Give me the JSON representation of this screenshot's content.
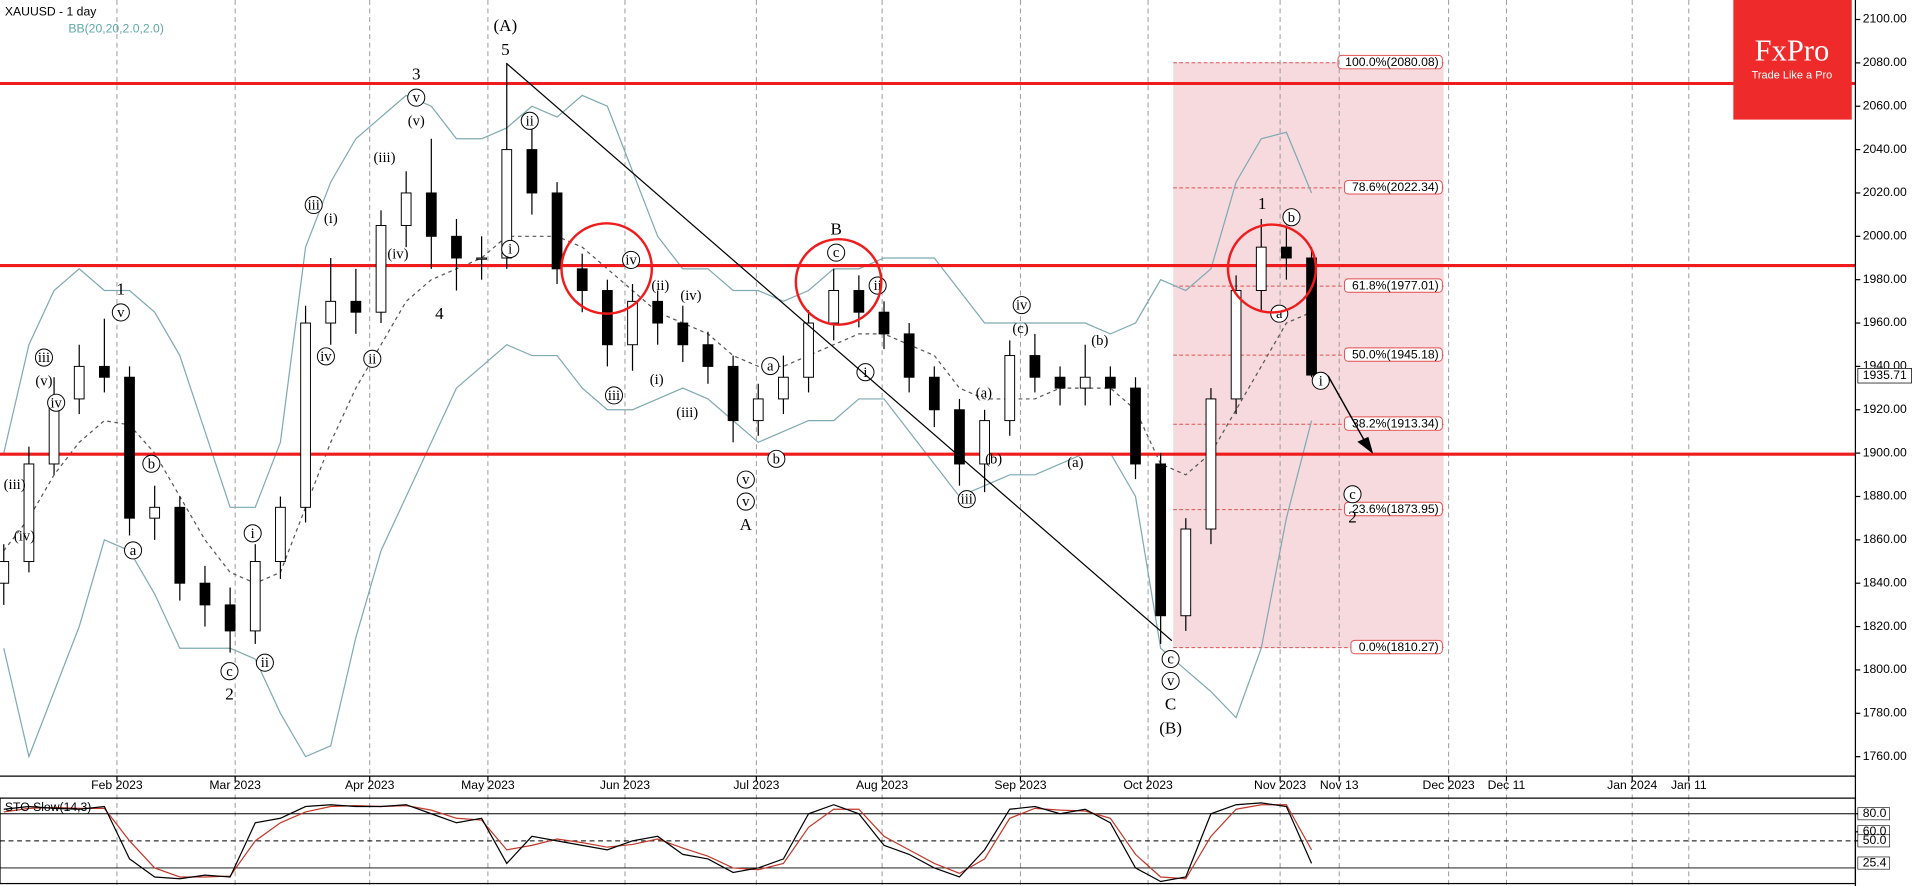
{
  "chart_data": {
    "type": "candlestick",
    "title": "XAUUSD - 1 day",
    "indicator": "BB(20,20,2.0,2.0)",
    "x": [
      -18,
      -14,
      -10,
      -6,
      -2,
      2,
      6,
      10,
      14,
      18,
      22,
      26,
      30,
      34,
      38,
      42,
      46,
      50,
      54,
      58,
      62,
      66,
      70,
      74,
      78,
      82,
      86,
      90,
      94,
      98,
      102,
      106,
      110,
      114,
      118,
      122,
      126,
      130,
      134,
      138,
      142,
      146,
      150,
      154,
      158,
      162,
      166,
      170,
      174,
      178,
      182,
      186,
      190
    ],
    "open": [
      1840,
      1850,
      1895,
      1925,
      1940,
      1935,
      1870,
      1875,
      1840,
      1830,
      1818,
      1850,
      1875,
      1960,
      1970,
      1965,
      2005,
      2020,
      2000,
      1990,
      1990,
      2040,
      2020,
      1985,
      1975,
      1950,
      1970,
      1960,
      1950,
      1940,
      1915,
      1925,
      1935,
      1960,
      1975,
      1965,
      1955,
      1935,
      1920,
      1895,
      1915,
      1945,
      1935,
      1930,
      1935,
      1930,
      1895,
      1825,
      1865,
      1925,
      1975,
      1995,
      1990
    ],
    "high": [
      1858,
      1903,
      1935,
      1950,
      1962,
      1940,
      1885,
      1880,
      1848,
      1838,
      1858,
      1880,
      1968,
      1990,
      1985,
      2012,
      2030,
      2045,
      2008,
      2000,
      2080,
      2055,
      2025,
      1992,
      1980,
      1978,
      1975,
      1968,
      1956,
      1945,
      1932,
      1945,
      1966,
      1985,
      1982,
      1970,
      1960,
      1940,
      1925,
      1920,
      1952,
      1955,
      1940,
      1950,
      1940,
      1935,
      1900,
      1870,
      1930,
      1982,
      2008,
      2005,
      1995
    ],
    "low": [
      1830,
      1845,
      1890,
      1918,
      1928,
      1862,
      1860,
      1832,
      1820,
      1808,
      1812,
      1842,
      1868,
      1950,
      1955,
      1960,
      1995,
      1985,
      1975,
      1980,
      1985,
      2010,
      1978,
      1965,
      1940,
      1938,
      1950,
      1942,
      1932,
      1905,
      1908,
      1918,
      1928,
      1952,
      1958,
      1948,
      1928,
      1912,
      1885,
      1882,
      1908,
      1928,
      1922,
      1922,
      1922,
      1888,
      1812,
      1818,
      1858,
      1918,
      1965,
      1980,
      1935
    ],
    "close": [
      1850,
      1895,
      1925,
      1940,
      1935,
      1870,
      1875,
      1840,
      1830,
      1818,
      1850,
      1875,
      1960,
      1970,
      1965,
      2005,
      2020,
      2000,
      1990,
      1990,
      2040,
      2020,
      1985,
      1975,
      1950,
      1970,
      1960,
      1950,
      1940,
      1915,
      1925,
      1935,
      1960,
      1975,
      1965,
      1955,
      1935,
      1920,
      1895,
      1915,
      1945,
      1935,
      1930,
      1935,
      1930,
      1895,
      1825,
      1865,
      1925,
      1975,
      1995,
      1990,
      1936
    ],
    "up_color": "#ffffff",
    "down_color": "#000000",
    "bands": {
      "color": "#7fa9b3",
      "upper": [
        1900,
        1950,
        1975,
        1985,
        1975,
        1975,
        1965,
        1945,
        1910,
        1875,
        1875,
        1905,
        1995,
        2025,
        2045,
        2055,
        2065,
        2060,
        2045,
        2045,
        2050,
        2060,
        2055,
        2065,
        2060,
        2030,
        2000,
        1985,
        1985,
        1975,
        1975,
        1970,
        1975,
        1985,
        1985,
        1990,
        1990,
        1990,
        1975,
        1960,
        1960,
        1960,
        1960,
        1960,
        1955,
        1960,
        1980,
        1975,
        1985,
        2025,
        2045,
        2048,
        2020
      ],
      "middle": [
        1855,
        1870,
        1890,
        1905,
        1915,
        1913,
        1900,
        1880,
        1860,
        1845,
        1840,
        1845,
        1875,
        1905,
        1930,
        1950,
        1970,
        1980,
        1985,
        1990,
        2000,
        2000,
        2000,
        1995,
        1985,
        1975,
        1965,
        1960,
        1955,
        1945,
        1940,
        1940,
        1945,
        1950,
        1955,
        1955,
        1950,
        1945,
        1930,
        1925,
        1925,
        1925,
        1930,
        1930,
        1930,
        1920,
        1895,
        1890,
        1900,
        1920,
        1940,
        1960,
        1965
      ],
      "lower": [
        1810,
        1760,
        1790,
        1820,
        1860,
        1855,
        1835,
        1810,
        1810,
        1810,
        1805,
        1780,
        1760,
        1765,
        1815,
        1855,
        1880,
        1905,
        1930,
        1940,
        1950,
        1945,
        1945,
        1930,
        1920,
        1920,
        1925,
        1930,
        1925,
        1915,
        1905,
        1910,
        1915,
        1915,
        1925,
        1925,
        1910,
        1895,
        1880,
        1885,
        1890,
        1890,
        1895,
        1900,
        1900,
        1880,
        1810,
        1800,
        1790,
        1778,
        1810,
        1870,
        1915
      ]
    },
    "xlim": [
      -18.6,
      276.5
    ],
    "xticks": [
      {
        "value": 0,
        "label": "Feb 2023"
      },
      {
        "value": 18.8,
        "label": "Mar 2023"
      },
      {
        "value": 40.2,
        "label": "Apr 2023"
      },
      {
        "value": 59,
        "label": "May 2023"
      },
      {
        "value": 80.8,
        "label": "Jun 2023"
      },
      {
        "value": 101.7,
        "label": "Jul 2023"
      },
      {
        "value": 121.7,
        "label": "Aug 2023"
      },
      {
        "value": 143.7,
        "label": "Sep 2023"
      },
      {
        "value": 164,
        "label": "Oct 2023"
      },
      {
        "value": 185,
        "label": "Nov 2023"
      },
      {
        "value": 194.4,
        "label": "Nov 13"
      },
      {
        "value": 211.8,
        "label": "Dec 2023"
      },
      {
        "value": 221,
        "label": "Dec 11"
      },
      {
        "value": 241,
        "label": "Jan 2024"
      },
      {
        "value": 250,
        "label": "Jan 11"
      }
    ],
    "ylim": [
      1751,
      2109
    ],
    "yticks": [
      {
        "value": 1760,
        "label": "1760.00"
      },
      {
        "value": 1780,
        "label": "1780.00"
      },
      {
        "value": 1800,
        "label": "1800.00"
      },
      {
        "value": 1820,
        "label": "1820.00"
      },
      {
        "value": 1840,
        "label": "1840.00"
      },
      {
        "value": 1860,
        "label": "1860.00"
      },
      {
        "value": 1880,
        "label": "1880.00"
      },
      {
        "value": 1900,
        "label": "1900.00"
      },
      {
        "value": 1920,
        "label": "1920.00"
      },
      {
        "value": 1940,
        "label": "1940.00"
      },
      {
        "value": 1960,
        "label": "1960.00"
      },
      {
        "value": 1980,
        "label": "1980.00"
      },
      {
        "value": 2000,
        "label": "2000.00"
      },
      {
        "value": 2020,
        "label": "2020.00"
      },
      {
        "value": 2040,
        "label": "2040.00"
      },
      {
        "value": 2060,
        "label": "2060.00"
      },
      {
        "value": 2080,
        "label": "2080.00"
      },
      {
        "value": 2100,
        "label": "2100.00"
      }
    ],
    "last_price": 1935.71,
    "levels": [
      2070.5,
      1986.5,
      1899.5
    ],
    "level_color": "#ee1c1c",
    "fib_x": [
      168,
      211
    ],
    "fib": [
      {
        "value": 2080.08,
        "label": "100.0%(2080.08)"
      },
      {
        "value": 2022.34,
        "label": "78.6%(2022.34)"
      },
      {
        "value": 1977.01,
        "label": "61.8%(1977.01)"
      },
      {
        "value": 1945.18,
        "label": "50.0%(1945.18)"
      },
      {
        "value": 1913.34,
        "label": "38.2%(1913.34)"
      },
      {
        "value": 1873.95,
        "label": "23.6%(1873.95)"
      },
      {
        "value": 1810.27,
        "label": "0.0%(1810.27)"
      }
    ],
    "annotations": [
      "(A)",
      "5",
      "3",
      "4",
      "1",
      "2",
      "A",
      "B",
      "C",
      "(B)",
      "1",
      "2",
      "(iii)",
      "(v)",
      "(i)",
      "(iv)",
      "(v)",
      "(iii)",
      "(iv)",
      "(ii)",
      "(iv)",
      "(i)",
      "(iii)",
      "(c)",
      "(a)",
      "(b)",
      "(b)",
      "(a)",
      "v",
      "iii",
      "iv",
      "b",
      "a",
      "c",
      "ii",
      "i",
      "iii",
      "iv",
      "ii",
      "v",
      "i",
      "ii",
      "iv",
      "iii",
      "a",
      "b",
      "v",
      "v",
      "c",
      "ii",
      "i",
      "iii",
      "iv",
      "c",
      "v",
      "b",
      "a",
      "i",
      "c"
    ],
    "stoch": {
      "title": "STO Slow(14,3)",
      "ylim": [
        0,
        100
      ],
      "yticks": [
        {
          "value": 80,
          "label": "80.0"
        },
        {
          "value": 60,
          "label": "60.0"
        },
        {
          "value": 50,
          "label": "50.0"
        }
      ],
      "levels": [
        80,
        50,
        20
      ],
      "last": 25.4,
      "k_color": "#000000",
      "d_color": "#c0392b",
      "k": [
        85,
        88,
        86,
        85,
        88,
        30,
        10,
        8,
        12,
        10,
        70,
        75,
        88,
        90,
        88,
        88,
        90,
        80,
        70,
        75,
        25,
        55,
        50,
        45,
        40,
        50,
        55,
        35,
        30,
        15,
        20,
        30,
        80,
        90,
        80,
        45,
        35,
        20,
        10,
        40,
        85,
        88,
        80,
        85,
        70,
        20,
        5,
        10,
        80,
        90,
        92,
        88,
        25
      ],
      "d": [
        82,
        86,
        87,
        86,
        86,
        50,
        20,
        10,
        10,
        11,
        50,
        70,
        82,
        88,
        89,
        88,
        89,
        84,
        75,
        73,
        40,
        45,
        52,
        48,
        43,
        46,
        52,
        42,
        33,
        20,
        18,
        25,
        65,
        85,
        85,
        55,
        40,
        25,
        14,
        30,
        75,
        86,
        84,
        83,
        75,
        35,
        10,
        8,
        55,
        85,
        90,
        90,
        40
      ]
    }
  },
  "logo": {
    "brand": "FxPro",
    "tagline": "Trade Like a Pro"
  }
}
